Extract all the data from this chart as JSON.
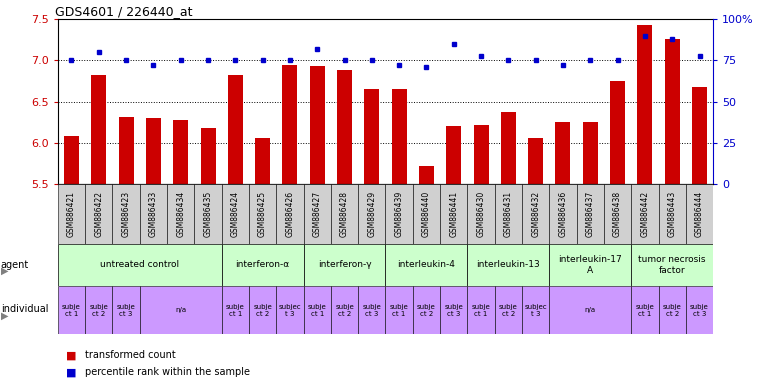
{
  "title": "GDS4601 / 226440_at",
  "sample_ids": [
    "GSM886421",
    "GSM886422",
    "GSM886423",
    "GSM886433",
    "GSM886434",
    "GSM886435",
    "GSM886424",
    "GSM886425",
    "GSM886426",
    "GSM886427",
    "GSM886428",
    "GSM886429",
    "GSM886439",
    "GSM886440",
    "GSM886441",
    "GSM886430",
    "GSM886431",
    "GSM886432",
    "GSM886436",
    "GSM886437",
    "GSM886438",
    "GSM886442",
    "GSM886443",
    "GSM886444"
  ],
  "bar_values": [
    6.08,
    6.82,
    6.32,
    6.3,
    6.28,
    6.18,
    6.82,
    6.06,
    6.94,
    6.93,
    6.88,
    6.65,
    6.65,
    5.72,
    6.21,
    6.22,
    6.38,
    6.06,
    6.25,
    6.25,
    6.75,
    7.43,
    7.26,
    6.68
  ],
  "percentile_values": [
    75,
    80,
    75,
    72,
    75,
    75,
    75,
    75,
    75,
    82,
    75,
    75,
    72,
    71,
    85,
    78,
    75,
    75,
    72,
    75,
    75,
    90,
    88,
    78
  ],
  "ylim_left": [
    5.5,
    7.5
  ],
  "ylim_right": [
    0,
    100
  ],
  "yticks_left": [
    5.5,
    6.0,
    6.5,
    7.0,
    7.5
  ],
  "yticks_right": [
    0,
    25,
    50,
    75,
    100
  ],
  "bar_color": "#cc0000",
  "percentile_color": "#0000cc",
  "xtick_bg_color": "#d0d0d0",
  "agent_groups": [
    {
      "label": "untreated control",
      "start": 0,
      "end": 6,
      "color": "#ccffcc"
    },
    {
      "label": "interferon-α",
      "start": 6,
      "end": 9,
      "color": "#ccffcc"
    },
    {
      "label": "interferon-γ",
      "start": 9,
      "end": 12,
      "color": "#ccffcc"
    },
    {
      "label": "interleukin-4",
      "start": 12,
      "end": 15,
      "color": "#ccffcc"
    },
    {
      "label": "interleukin-13",
      "start": 15,
      "end": 18,
      "color": "#ccffcc"
    },
    {
      "label": "interleukin-17\nA",
      "start": 18,
      "end": 21,
      "color": "#ccffcc"
    },
    {
      "label": "tumor necrosis\nfactor",
      "start": 21,
      "end": 24,
      "color": "#ccffcc"
    }
  ],
  "individual_groups": [
    {
      "label": "subje\nct 1",
      "start": 0,
      "end": 1,
      "color": "#cc99ff"
    },
    {
      "label": "subje\nct 2",
      "start": 1,
      "end": 2,
      "color": "#cc99ff"
    },
    {
      "label": "subje\nct 3",
      "start": 2,
      "end": 3,
      "color": "#cc99ff"
    },
    {
      "label": "n/a",
      "start": 3,
      "end": 6,
      "color": "#cc99ff"
    },
    {
      "label": "subje\nct 1",
      "start": 6,
      "end": 7,
      "color": "#cc99ff"
    },
    {
      "label": "subje\nct 2",
      "start": 7,
      "end": 8,
      "color": "#cc99ff"
    },
    {
      "label": "subjec\nt 3",
      "start": 8,
      "end": 9,
      "color": "#cc99ff"
    },
    {
      "label": "subje\nct 1",
      "start": 9,
      "end": 10,
      "color": "#cc99ff"
    },
    {
      "label": "subje\nct 2",
      "start": 10,
      "end": 11,
      "color": "#cc99ff"
    },
    {
      "label": "subje\nct 3",
      "start": 11,
      "end": 12,
      "color": "#cc99ff"
    },
    {
      "label": "subje\nct 1",
      "start": 12,
      "end": 13,
      "color": "#cc99ff"
    },
    {
      "label": "subje\nct 2",
      "start": 13,
      "end": 14,
      "color": "#cc99ff"
    },
    {
      "label": "subje\nct 3",
      "start": 14,
      "end": 15,
      "color": "#cc99ff"
    },
    {
      "label": "subje\nct 1",
      "start": 15,
      "end": 16,
      "color": "#cc99ff"
    },
    {
      "label": "subje\nct 2",
      "start": 16,
      "end": 17,
      "color": "#cc99ff"
    },
    {
      "label": "subjec\nt 3",
      "start": 17,
      "end": 18,
      "color": "#cc99ff"
    },
    {
      "label": "n/a",
      "start": 18,
      "end": 21,
      "color": "#cc99ff"
    },
    {
      "label": "subje\nct 1",
      "start": 21,
      "end": 22,
      "color": "#cc99ff"
    },
    {
      "label": "subje\nct 2",
      "start": 22,
      "end": 23,
      "color": "#cc99ff"
    },
    {
      "label": "subje\nct 3",
      "start": 23,
      "end": 24,
      "color": "#cc99ff"
    }
  ],
  "legend_bar_label": "transformed count",
  "legend_percentile_label": "percentile rank within the sample",
  "xlabel_color": "#cc0000",
  "ylabel_right_color": "#0000cc",
  "grid_dotted_values": [
    6.0,
    6.5,
    7.0
  ],
  "background_color": "#ffffff"
}
